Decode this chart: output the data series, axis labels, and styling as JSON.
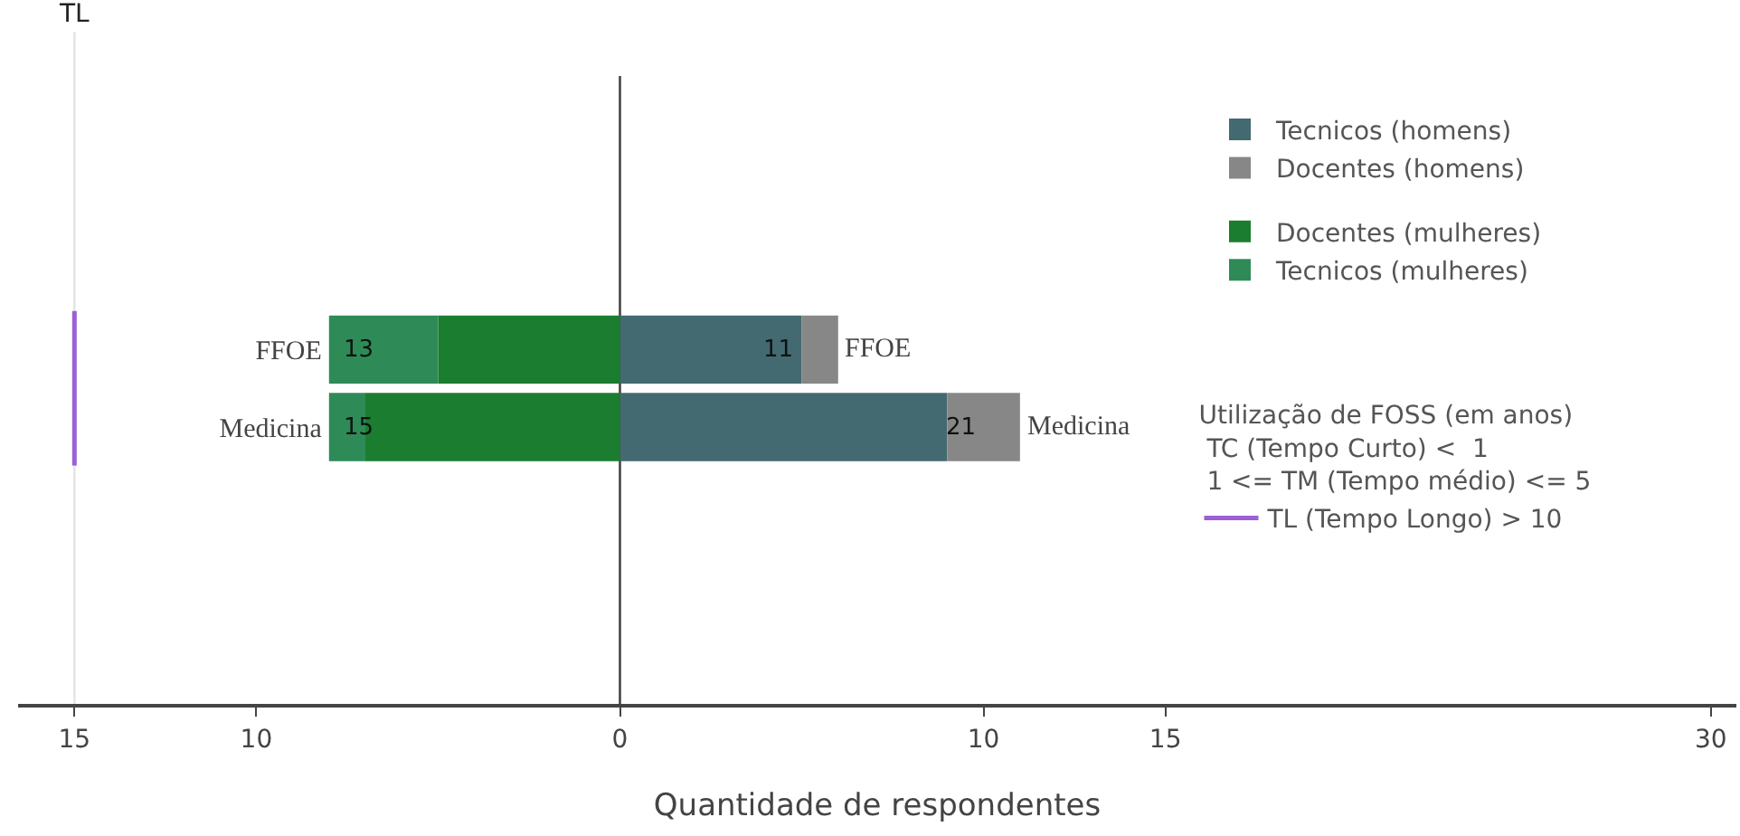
{
  "chart_data": {
    "type": "bar",
    "orientation": "horizontal",
    "stacked": true,
    "categories": [
      "FFOE",
      "Medicina"
    ],
    "xlabel": "Quantidade de respondentes",
    "legend_title": "Utilização de FOSS (em anos)\n TC (Tempo Curto) <  1\n 1 <= TM (Tempo médio) <= 5",
    "series": [
      {
        "name": "Tecnicos (homens)",
        "color": "#436a70",
        "values": [
          5,
          9
        ]
      },
      {
        "name": "Docentes (homens)",
        "color": "#878787",
        "values": [
          1,
          2
        ]
      },
      {
        "name": "Docentes (mulheres)",
        "color": "#1b7d2f",
        "values": [
          -5,
          -7
        ]
      },
      {
        "name": "Tecnicos (mulheres)",
        "color": "#2e8b57",
        "values": [
          -3,
          -1
        ]
      }
    ],
    "annotations": [
      "13",
      "11",
      "15",
      "21"
    ],
    "ref_lines": [
      {
        "axis": "x",
        "value": -15,
        "label": "TL",
        "color": "#e6e6e6"
      },
      {
        "axis": "x",
        "value": 0,
        "color": "#444444"
      },
      {
        "axis": "x",
        "value": -15,
        "label": "TL (Tempo Longo) > 10",
        "color": "#9b5fd6",
        "line_style": "solid"
      }
    ],
    "xlim": [
      -16.55,
      30.7
    ],
    "xticks": [
      {
        "value": -15,
        "label": "15"
      },
      {
        "value": -10,
        "label": "10"
      },
      0,
      10,
      15,
      30
    ],
    "grid": false,
    "legend": "right"
  }
}
